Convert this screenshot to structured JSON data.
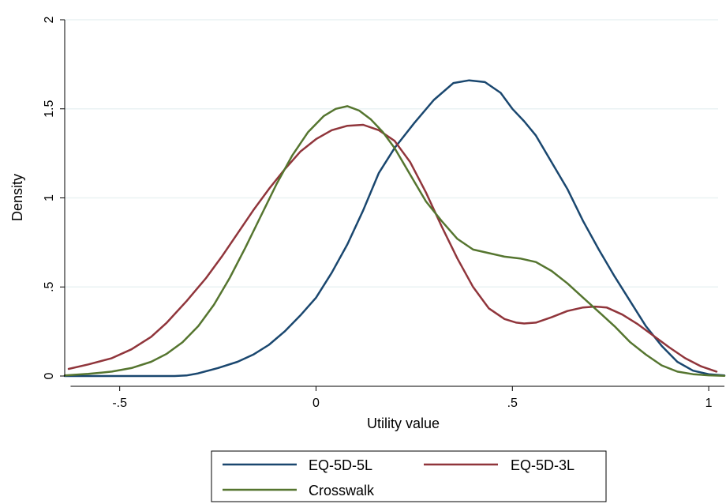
{
  "chart_data": {
    "type": "line",
    "title": "",
    "xlabel": "Utility value",
    "ylabel": "Density",
    "xlim": [
      -0.64,
      1.04
    ],
    "ylim": [
      0,
      2
    ],
    "xticks": [
      -0.5,
      0,
      0.5,
      1
    ],
    "xtick_labels": [
      "-.5",
      "0",
      ".5",
      "1"
    ],
    "yticks": [
      0,
      0.5,
      1,
      1.5,
      2
    ],
    "ytick_labels": [
      "0",
      ".5",
      "1",
      "1.5",
      "2"
    ],
    "grid": "horizontal",
    "legend_position": "bottom",
    "colors": {
      "eq5d5l": "#1a476f",
      "eq5d3l": "#90353b",
      "crosswalk": "#55752f"
    },
    "series": [
      {
        "name": "EQ-5D-5L",
        "color": "#1a476f",
        "x": [
          -0.64,
          -0.55,
          -0.45,
          -0.36,
          -0.33,
          -0.3,
          -0.25,
          -0.2,
          -0.16,
          -0.12,
          -0.08,
          -0.04,
          0.0,
          0.04,
          0.08,
          0.12,
          0.16,
          0.2,
          0.25,
          0.3,
          0.35,
          0.39,
          0.43,
          0.47,
          0.5,
          0.53,
          0.56,
          0.6,
          0.64,
          0.68,
          0.72,
          0.76,
          0.8,
          0.84,
          0.88,
          0.92,
          0.96,
          1.0,
          1.04
        ],
        "y": [
          0.0,
          0.0,
          0.0,
          0.0,
          0.003,
          0.015,
          0.045,
          0.08,
          0.12,
          0.175,
          0.25,
          0.34,
          0.44,
          0.58,
          0.74,
          0.93,
          1.14,
          1.28,
          1.42,
          1.55,
          1.645,
          1.66,
          1.65,
          1.59,
          1.5,
          1.43,
          1.35,
          1.2,
          1.05,
          0.87,
          0.71,
          0.56,
          0.42,
          0.28,
          0.17,
          0.08,
          0.03,
          0.01,
          0.003
        ]
      },
      {
        "name": "EQ-5D-3L",
        "color": "#90353b",
        "x": [
          -0.63,
          -0.58,
          -0.52,
          -0.47,
          -0.42,
          -0.38,
          -0.33,
          -0.28,
          -0.24,
          -0.2,
          -0.16,
          -0.12,
          -0.08,
          -0.04,
          0.0,
          0.04,
          0.08,
          0.12,
          0.16,
          0.2,
          0.24,
          0.28,
          0.32,
          0.36,
          0.4,
          0.44,
          0.48,
          0.51,
          0.53,
          0.56,
          0.6,
          0.64,
          0.68,
          0.71,
          0.74,
          0.78,
          0.82,
          0.86,
          0.9,
          0.94,
          0.98,
          1.02
        ],
        "y": [
          0.04,
          0.065,
          0.1,
          0.15,
          0.22,
          0.3,
          0.42,
          0.55,
          0.67,
          0.8,
          0.93,
          1.05,
          1.16,
          1.26,
          1.33,
          1.38,
          1.405,
          1.41,
          1.38,
          1.32,
          1.2,
          1.03,
          0.84,
          0.66,
          0.5,
          0.38,
          0.32,
          0.3,
          0.295,
          0.3,
          0.33,
          0.365,
          0.385,
          0.39,
          0.385,
          0.345,
          0.29,
          0.225,
          0.16,
          0.1,
          0.055,
          0.025
        ]
      },
      {
        "name": "Crosswalk",
        "color": "#55752f",
        "x": [
          -0.64,
          -0.58,
          -0.52,
          -0.47,
          -0.42,
          -0.38,
          -0.34,
          -0.3,
          -0.26,
          -0.22,
          -0.18,
          -0.14,
          -0.1,
          -0.06,
          -0.02,
          0.02,
          0.05,
          0.08,
          0.11,
          0.14,
          0.17,
          0.2,
          0.24,
          0.28,
          0.32,
          0.36,
          0.4,
          0.44,
          0.48,
          0.52,
          0.56,
          0.6,
          0.64,
          0.68,
          0.72,
          0.76,
          0.8,
          0.84,
          0.88,
          0.92,
          0.96,
          1.0,
          1.04
        ],
        "y": [
          0.003,
          0.012,
          0.025,
          0.045,
          0.08,
          0.125,
          0.19,
          0.28,
          0.4,
          0.55,
          0.72,
          0.9,
          1.08,
          1.24,
          1.37,
          1.46,
          1.5,
          1.515,
          1.49,
          1.44,
          1.37,
          1.28,
          1.13,
          0.98,
          0.87,
          0.77,
          0.71,
          0.69,
          0.67,
          0.66,
          0.64,
          0.59,
          0.52,
          0.44,
          0.36,
          0.28,
          0.19,
          0.12,
          0.06,
          0.025,
          0.01,
          0.004,
          0.001
        ]
      }
    ]
  }
}
